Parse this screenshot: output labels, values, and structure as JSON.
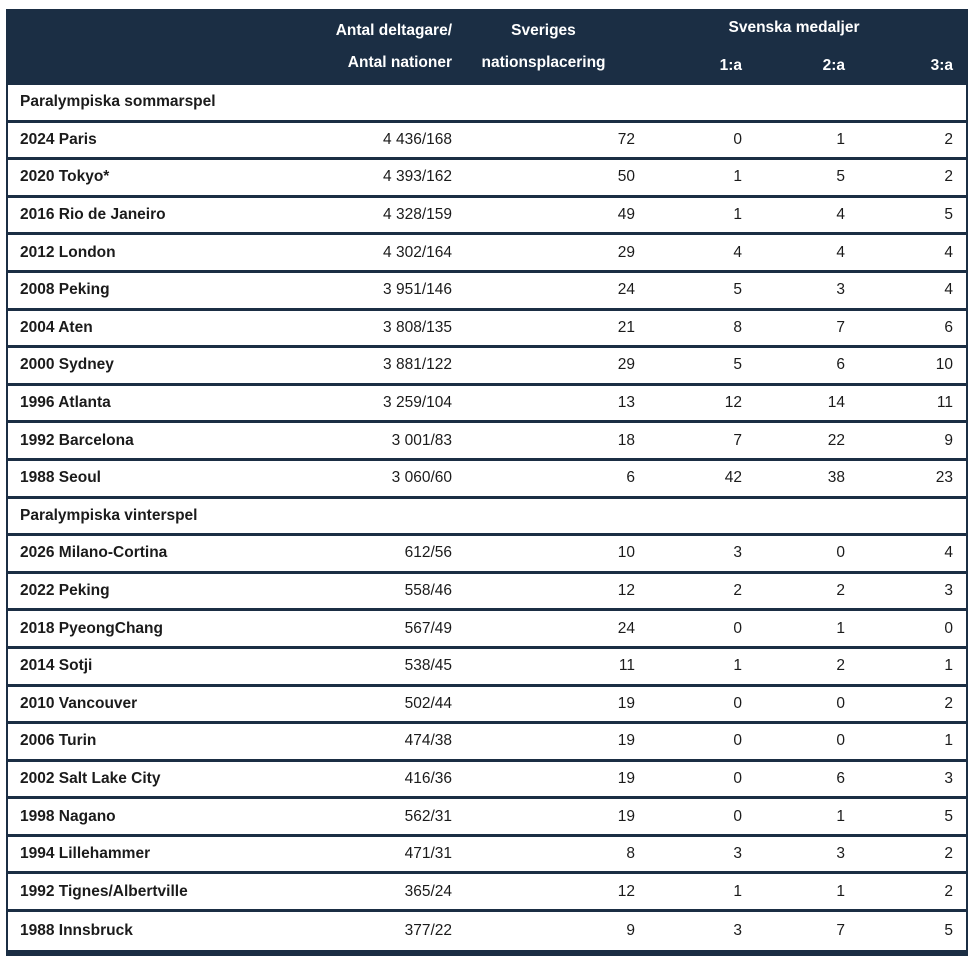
{
  "colors": {
    "navy": "#1b2e44",
    "row_background": "#ffffff",
    "header_text": "#ffffff",
    "body_text": "#1b1b1b"
  },
  "chart_data": {
    "type": "table",
    "header": {
      "participants_line1": "Antal deltagare/",
      "participants_line2": "Antal nationer",
      "placement_line1": "Sveriges",
      "placement_line2": "nationsplacering",
      "medals_group": "Svenska medaljer",
      "medal_cols": [
        "1:a",
        "2:a",
        "3:a"
      ]
    },
    "row_columns": [
      "event",
      "participants/nations",
      "sweden_nation_placement",
      "gold_1a",
      "silver_2a",
      "bronze_3a"
    ],
    "sections": [
      {
        "title": "Paralympiska sommarspel",
        "rows": [
          [
            "2024 Paris",
            "4 436/168",
            "72",
            "0",
            "1",
            "2"
          ],
          [
            "2020 Tokyo*",
            "4 393/162",
            "50",
            "1",
            "5",
            "2"
          ],
          [
            "2016 Rio de Janeiro",
            "4 328/159",
            "49",
            "1",
            "4",
            "5"
          ],
          [
            "2012 London",
            "4 302/164",
            "29",
            "4",
            "4",
            "4"
          ],
          [
            "2008 Peking",
            "3 951/146",
            "24",
            "5",
            "3",
            "4"
          ],
          [
            "2004 Aten",
            "3 808/135",
            "21",
            "8",
            "7",
            "6"
          ],
          [
            "2000 Sydney",
            "3 881/122",
            "29",
            "5",
            "6",
            "10"
          ],
          [
            "1996 Atlanta",
            "3 259/104",
            "13",
            "12",
            "14",
            "11"
          ],
          [
            "1992 Barcelona",
            "3 001/83",
            "18",
            "7",
            "22",
            "9"
          ],
          [
            "1988 Seoul",
            "3 060/60",
            "6",
            "42",
            "38",
            "23"
          ]
        ]
      },
      {
        "title": "Paralympiska vinterspel",
        "rows": [
          [
            "2026 Milano-Cortina",
            "612/56",
            "10",
            "3",
            "0",
            "4"
          ],
          [
            "2022 Peking",
            "558/46",
            "12",
            "2",
            "2",
            "3"
          ],
          [
            "2018 PyeongChang",
            "567/49",
            "24",
            "0",
            "1",
            "0"
          ],
          [
            "2014 Sotji",
            "538/45",
            "11",
            "1",
            "2",
            "1"
          ],
          [
            "2010 Vancouver",
            "502/44",
            "19",
            "0",
            "0",
            "2"
          ],
          [
            "2006 Turin",
            "474/38",
            "19",
            "0",
            "0",
            "1"
          ],
          [
            "2002 Salt Lake City",
            "416/36",
            "19",
            "0",
            "6",
            "3"
          ],
          [
            "1998 Nagano",
            "562/31",
            "19",
            "0",
            "1",
            "5"
          ],
          [
            "1994 Lillehammer",
            "471/31",
            "8",
            "3",
            "3",
            "2"
          ],
          [
            "1992 Tignes/Albertville",
            "365/24",
            "12",
            "1",
            "1",
            "2"
          ],
          [
            "1988 Innsbruck",
            "377/22",
            "9",
            "3",
            "7",
            "5"
          ]
        ]
      }
    ]
  }
}
